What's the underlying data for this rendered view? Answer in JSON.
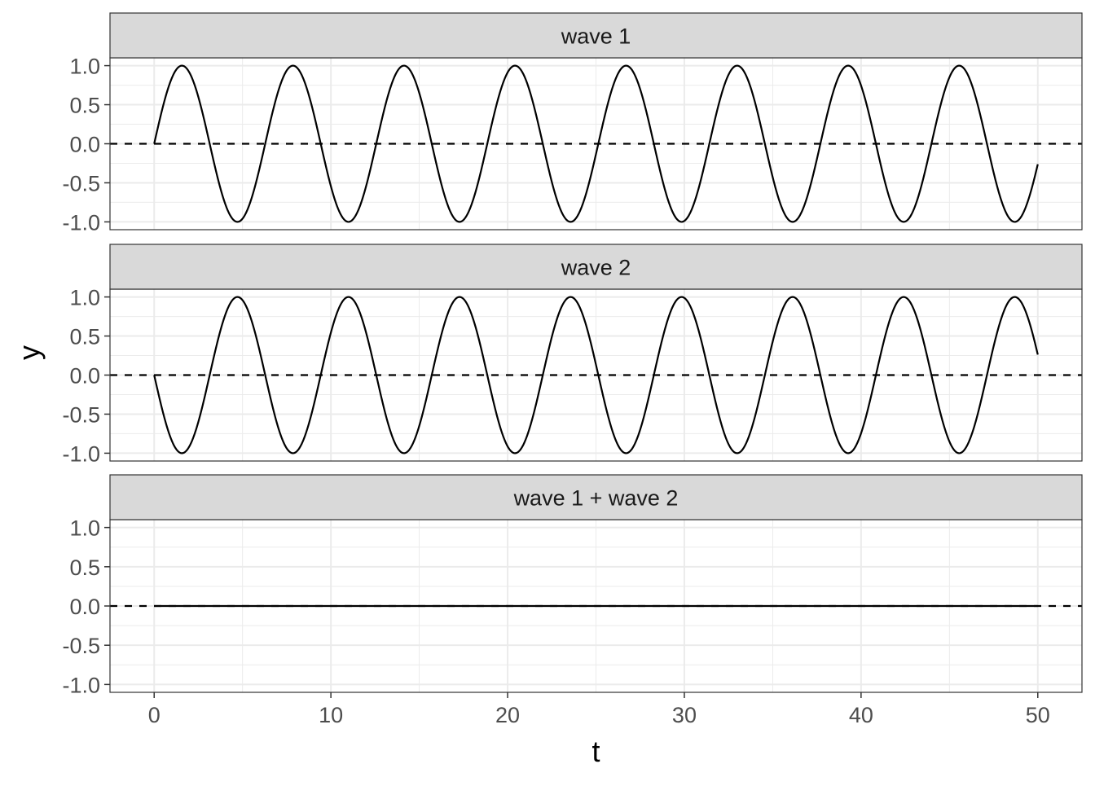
{
  "chart_data": {
    "type": "line",
    "layout": "faceted-vertical",
    "xlabel": "t",
    "ylabel": "y",
    "xlim": [
      -2.5,
      52.5
    ],
    "ylim": [
      -1.1,
      1.1
    ],
    "x_ticks": [
      0,
      10,
      20,
      30,
      40,
      50
    ],
    "x_tick_labels": [
      "0",
      "10",
      "20",
      "30",
      "40",
      "50"
    ],
    "y_ticks": [
      -1.0,
      -0.5,
      0.0,
      0.5,
      1.0
    ],
    "y_tick_labels": [
      "-1.0",
      "-0.5",
      "0.0",
      "0.5",
      "1.0"
    ],
    "grid": true,
    "reference_line": {
      "y": 0,
      "style": "dashed"
    },
    "x_range": [
      0,
      50
    ],
    "panels": [
      {
        "title": "wave 1",
        "formula": "sin(t)"
      },
      {
        "title": "wave 2",
        "formula": "-sin(t)"
      },
      {
        "title": "wave 1 + wave 2",
        "formula": "0"
      }
    ],
    "colors": {
      "line": "#000000",
      "strip_fill": "#d9d9d9",
      "grid": "#ebebeb",
      "border": "#333333"
    }
  }
}
